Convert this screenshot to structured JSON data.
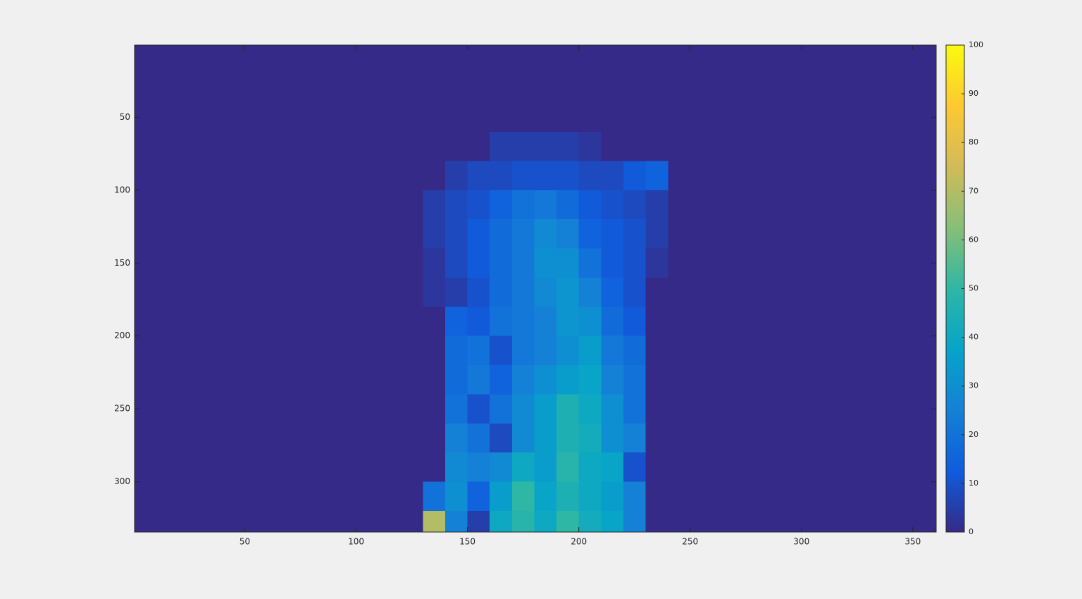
{
  "chart_data": {
    "type": "heatmap",
    "x": [
      135,
      145,
      155,
      165,
      175,
      185,
      195,
      205,
      215,
      225,
      235
    ],
    "y": [
      70,
      90,
      110,
      130,
      150,
      170,
      190,
      210,
      230,
      250,
      270,
      290,
      310,
      330
    ],
    "z": [
      [
        0,
        0,
        0,
        5,
        5,
        5,
        5,
        3,
        0,
        0,
        0
      ],
      [
        0,
        5,
        8,
        8,
        10,
        10,
        10,
        8,
        8,
        12,
        15
      ],
      [
        5,
        8,
        10,
        15,
        20,
        22,
        18,
        12,
        10,
        8,
        5
      ],
      [
        5,
        8,
        12,
        18,
        22,
        28,
        25,
        15,
        12,
        10,
        5
      ],
      [
        3,
        8,
        12,
        18,
        22,
        30,
        30,
        20,
        12,
        10,
        3
      ],
      [
        3,
        5,
        10,
        18,
        22,
        28,
        32,
        25,
        15,
        10,
        0
      ],
      [
        0,
        15,
        12,
        20,
        22,
        25,
        32,
        30,
        18,
        12,
        0
      ],
      [
        0,
        18,
        20,
        10,
        22,
        25,
        30,
        35,
        22,
        18,
        0
      ],
      [
        0,
        18,
        22,
        15,
        25,
        30,
        35,
        38,
        25,
        20,
        0
      ],
      [
        0,
        20,
        10,
        20,
        28,
        35,
        45,
        40,
        30,
        20,
        0
      ],
      [
        0,
        25,
        20,
        8,
        28,
        35,
        45,
        42,
        30,
        25,
        0
      ],
      [
        0,
        28,
        25,
        28,
        40,
        35,
        48,
        40,
        38,
        10,
        0
      ],
      [
        20,
        30,
        15,
        35,
        50,
        38,
        45,
        40,
        35,
        25,
        0
      ],
      [
        70,
        25,
        5,
        40,
        48,
        40,
        50,
        42,
        38,
        25,
        0
      ]
    ],
    "xlim": [
      0.5,
      360.5
    ],
    "xticks": [
      50,
      100,
      150,
      200,
      250,
      300,
      350
    ],
    "ylim": [
      0.5,
      334.5
    ],
    "yticks": [
      50,
      100,
      150,
      200,
      250,
      300
    ],
    "y_reversed": true,
    "clim": [
      0,
      100
    ],
    "cticks": [
      0,
      10,
      20,
      30,
      40,
      50,
      60,
      70,
      80,
      90,
      100
    ],
    "colormap": [
      "#352a87",
      "#0f5cdd",
      "#1481d6",
      "#06a4ca",
      "#2eb7a4",
      "#87bf77",
      "#d1bb59",
      "#fec832",
      "#f9fb0e"
    ]
  }
}
